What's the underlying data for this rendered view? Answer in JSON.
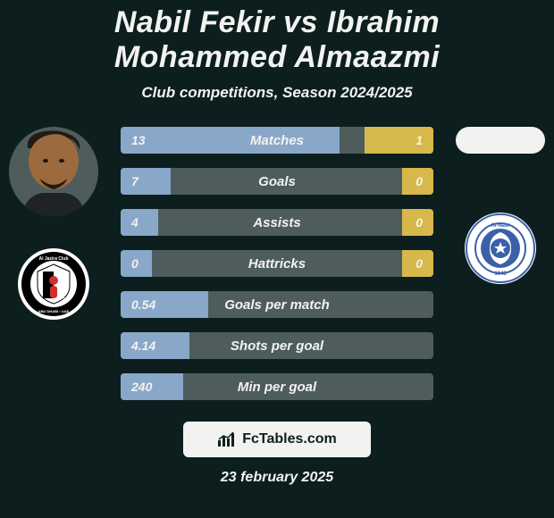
{
  "colors": {
    "background": "#0c1f1e",
    "text": "#f2f3f1",
    "row_track": "#4e5d5c",
    "left_fill": "#89a7c9",
    "right_fill": "#d7b84a",
    "footer_pill_bg": "#f2f3f1",
    "footer_pill_text": "#0c1f1e",
    "player_left_skin": "#9b6a3f",
    "player_left_hair": "#231a13",
    "player_left_shirt": "#1f2326",
    "player_right_bg": "#f2f3f1",
    "club_left_outer": "#ffffff",
    "club_left_inner": "#000000",
    "club_left_accent": "#d12f2f",
    "club_right_bg": "#ffffff",
    "club_right_blue": "#3a61a8"
  },
  "typography": {
    "title_fontsize": 34,
    "subtitle_fontsize": 17,
    "row_value_fontsize": 14,
    "row_label_fontsize": 15,
    "footer_fontsize": 16,
    "date_fontsize": 16
  },
  "title": "Nabil Fekir vs Ibrahim Mohammed Almaazmi",
  "subtitle": "Club competitions, Season 2024/2025",
  "date": "23 february 2025",
  "footer_label": "FcTables.com",
  "players": {
    "left": {
      "name": "Nabil Fekir",
      "has_photo": true
    },
    "right": {
      "name": "Ibrahim Mohammed Almaazmi",
      "has_photo": false
    }
  },
  "clubs": {
    "left": {
      "name": "Al Jazira Club",
      "subtext": "ABU DHABI • UAE"
    },
    "right": {
      "name": "Al-Nasr",
      "year": "1945"
    }
  },
  "rows": [
    {
      "label": "Matches",
      "left_value": "13",
      "right_value": "1",
      "left_fill_pct": 70,
      "right_fill_pct": 22
    },
    {
      "label": "Goals",
      "left_value": "7",
      "right_value": "0",
      "left_fill_pct": 16,
      "right_fill_pct": 10
    },
    {
      "label": "Assists",
      "left_value": "4",
      "right_value": "0",
      "left_fill_pct": 12,
      "right_fill_pct": 10
    },
    {
      "label": "Hattricks",
      "left_value": "0",
      "right_value": "0",
      "left_fill_pct": 10,
      "right_fill_pct": 10
    },
    {
      "label": "Goals per match",
      "left_value": "0.54",
      "right_value": "",
      "left_fill_pct": 28,
      "right_fill_pct": 0
    },
    {
      "label": "Shots per goal",
      "left_value": "4.14",
      "right_value": "",
      "left_fill_pct": 22,
      "right_fill_pct": 0
    },
    {
      "label": "Min per goal",
      "left_value": "240",
      "right_value": "",
      "left_fill_pct": 20,
      "right_fill_pct": 0
    }
  ]
}
